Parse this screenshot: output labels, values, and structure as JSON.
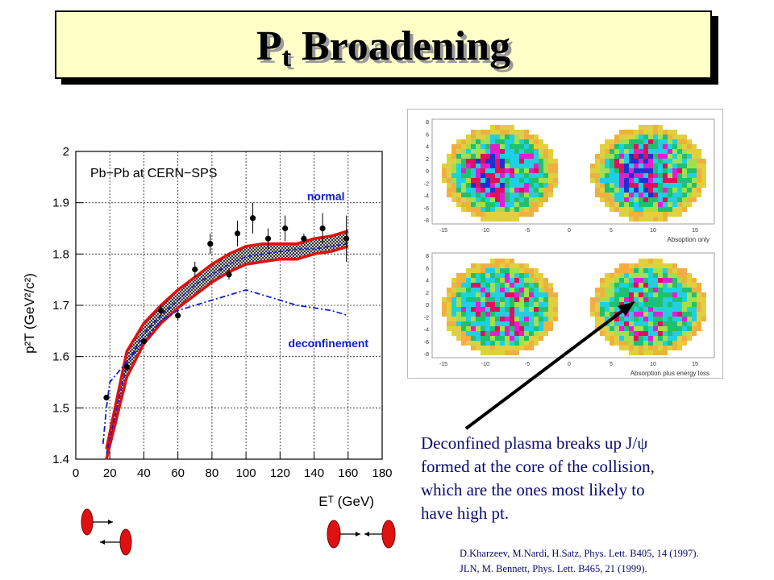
{
  "title": {
    "main": "P",
    "sub": "t",
    "rest": " Broadening"
  },
  "chart_data": {
    "type": "scatter",
    "annotation": "Pb−Pb at CERN−SPS",
    "ylabel": "p²T (GeV²/c²)",
    "xlabel": "Eᵀ (GeV)",
    "xlim": [
      0,
      180
    ],
    "ylim": [
      1.4,
      2.0
    ],
    "xticks": [
      0,
      20,
      40,
      60,
      80,
      100,
      120,
      140,
      160,
      180
    ],
    "yticks": [
      1.4,
      1.5,
      1.6,
      1.7,
      1.8,
      1.9,
      2
    ],
    "grid": true,
    "labels": {
      "normal": "normal",
      "deconfinement": "deconfinement"
    },
    "data_points": {
      "x": [
        18,
        30,
        40,
        50,
        60,
        70,
        79,
        90,
        95,
        104,
        113,
        123,
        134,
        145,
        159
      ],
      "y": [
        1.52,
        1.58,
        1.63,
        1.69,
        1.68,
        1.77,
        1.82,
        1.76,
        1.84,
        1.87,
        1.83,
        1.85,
        1.83,
        1.85,
        1.83
      ],
      "err": [
        0.005,
        0.005,
        0.005,
        0.01,
        0.01,
        0.015,
        0.02,
        0.01,
        0.025,
        0.03,
        0.02,
        0.025,
        0.01,
        0.03,
        0.045
      ]
    },
    "band_upper": {
      "x": [
        18,
        30,
        40,
        50,
        60,
        70,
        80,
        90,
        100,
        110,
        120,
        130,
        140,
        150,
        160
      ],
      "y": [
        1.42,
        1.61,
        1.665,
        1.7,
        1.73,
        1.755,
        1.78,
        1.8,
        1.815,
        1.82,
        1.82,
        1.82,
        1.83,
        1.835,
        1.845
      ]
    },
    "band_lower": {
      "x": [
        18,
        30,
        40,
        50,
        60,
        70,
        80,
        90,
        100,
        110,
        120,
        130,
        140,
        150,
        160
      ],
      "y": [
        1.4,
        1.56,
        1.625,
        1.665,
        1.695,
        1.72,
        1.745,
        1.765,
        1.78,
        1.785,
        1.79,
        1.79,
        1.8,
        1.805,
        1.815
      ]
    },
    "normal_curve": {
      "x": [
        18,
        30,
        40,
        50,
        60,
        70,
        80,
        90,
        100,
        110,
        120,
        130,
        140,
        150,
        160
      ],
      "y": [
        1.41,
        1.585,
        1.645,
        1.68,
        1.71,
        1.74,
        1.76,
        1.78,
        1.795,
        1.8,
        1.805,
        1.81,
        1.81,
        1.815,
        1.82
      ]
    },
    "deconfinement_curve": {
      "x": [
        16,
        18,
        20,
        30,
        40,
        50,
        60,
        70,
        80,
        90,
        100,
        110,
        120,
        130,
        140,
        150,
        160
      ],
      "y": [
        1.43,
        1.5,
        1.55,
        1.59,
        1.63,
        1.67,
        1.69,
        1.7,
        1.71,
        1.72,
        1.73,
        1.72,
        1.71,
        1.7,
        1.695,
        1.69,
        1.68
      ]
    }
  },
  "heatmaps": {
    "top_caption": "Absoption only",
    "bottom_caption": "Absorption plus energy loss",
    "xticks": [
      "-15",
      "-10",
      "-5",
      "0",
      "5",
      "10",
      "15"
    ],
    "yticks": [
      "8",
      "6",
      "4",
      "2",
      "0",
      "-2",
      "-4",
      "-6",
      "-8"
    ]
  },
  "caption": {
    "line1": "Deconfined plasma breaks up J/ψ",
    "line2": "formed at the core of the collision,",
    "line3": "which are the ones most likely to",
    "line4": "have high pt."
  },
  "references": {
    "ref1": "D.Kharzeev, M.Nardi, H.Satz, Phys. Lett. B405, 14 (1997).",
    "ref2": "JLN, M. Bennett, Phys. Lett. B465, 21 (1999)."
  },
  "colors": {
    "band": "#e01010",
    "deconf": "#1020d0",
    "caption": "#0a0a6e",
    "title_bg": "#ffffc8"
  }
}
